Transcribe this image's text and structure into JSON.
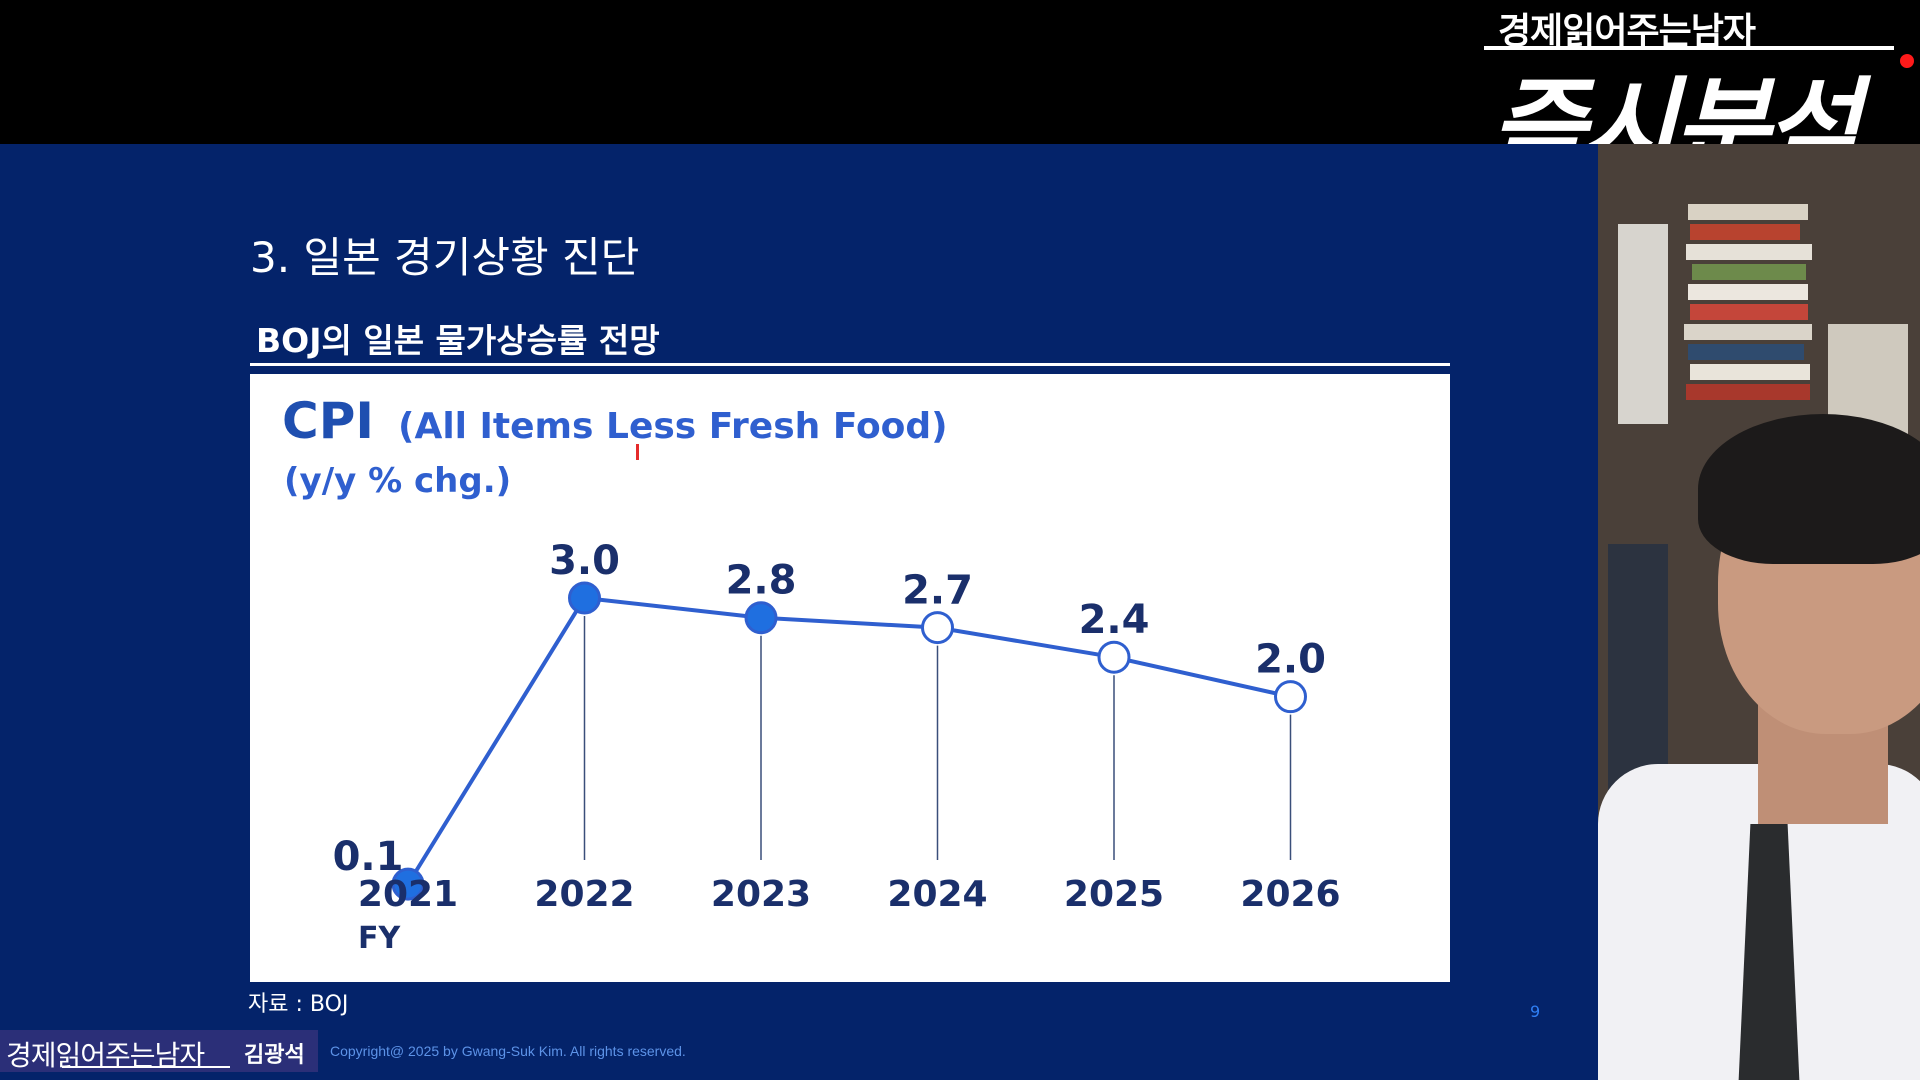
{
  "brand": {
    "channel_small": "경제읽어주는남자",
    "channel_big": "즉시분석"
  },
  "slide": {
    "title": "3. 일본 경기상황 진단",
    "subtitle": "BOJ의 일본 물가상승률 전망",
    "source": "자료 :  BOJ",
    "page_number": "9"
  },
  "footer": {
    "brand": "경제읽어주는남자",
    "author": "김광석",
    "copyright": "Copyright@ 2025 by Gwang-Suk Kim. All rights reserved."
  },
  "colors": {
    "slide_bg": "#04236a",
    "chart_blue": "#2f5fcf",
    "marker_fill": "#1f6fe0",
    "title_blue": "#1f4fb0"
  },
  "chart_data": {
    "type": "line",
    "title": "CPI",
    "subtitle": "(All Items Less Fresh Food)",
    "ylabel": "(y/y % chg.)",
    "xlabel": "",
    "x": [
      "2021",
      "2022",
      "2023",
      "2024",
      "2025",
      "2026"
    ],
    "x_sublabel": "FY",
    "values": [
      0.1,
      3.0,
      2.8,
      2.7,
      2.4,
      2.0
    ],
    "value_labels": [
      "0.1",
      "3.0",
      "2.8",
      "2.7",
      "2.4",
      "2.0"
    ],
    "marker_filled": [
      true,
      true,
      true,
      false,
      false,
      false
    ],
    "ylim": [
      0,
      3.0
    ],
    "grid": false,
    "legend": "none"
  }
}
